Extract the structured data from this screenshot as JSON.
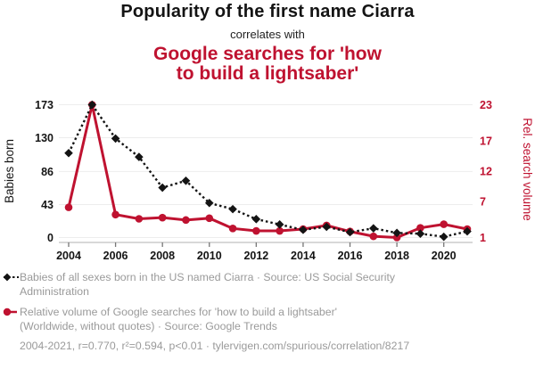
{
  "header": {
    "title1": "Popularity of the first name Ciarra",
    "connector": "correlates with",
    "title2": "Google searches for 'how to build a lightsaber'",
    "title2_lines": [
      "Google searches for 'how",
      "to build a lightsaber'"
    ]
  },
  "colors": {
    "accent_red": "#bf1230",
    "series_black": "#141414",
    "legend_gray": "#9a9a9a",
    "gridline": "#ededed",
    "axis_line": "#b0b0b0",
    "background": "#ffffff"
  },
  "chart_data": {
    "type": "line",
    "x": [
      2004,
      2005,
      2006,
      2007,
      2008,
      2009,
      2010,
      2011,
      2012,
      2013,
      2014,
      2015,
      2016,
      2017,
      2018,
      2019,
      2020,
      2021
    ],
    "series": [
      {
        "key": "babies-born",
        "name": "Babies born",
        "axis": "left",
        "color": "#141414",
        "line": "dashed",
        "marker": "diamond",
        "values": [
          110,
          173,
          129,
          105,
          65,
          74,
          45,
          37,
          24,
          17,
          10,
          14,
          7,
          12,
          6,
          5,
          1,
          8
        ]
      },
      {
        "key": "search-volume",
        "name": "Rel. search volume",
        "axis": "right",
        "color": "#bf1230",
        "line": "solid",
        "marker": "circle",
        "values": [
          6,
          23,
          4.8,
          4.1,
          4.3,
          3.9,
          4.2,
          2.5,
          2.1,
          2.1,
          2.4,
          3,
          2,
          1.2,
          1,
          2.6,
          3.2,
          2.4
        ]
      }
    ],
    "left_axis": {
      "label": "Babies born",
      "ticks": [
        0,
        43,
        86,
        130,
        173
      ],
      "range": [
        0,
        173
      ]
    },
    "right_axis": {
      "label": "Rel. search volume",
      "ticks": [
        1,
        7,
        12,
        17,
        23
      ],
      "range": [
        1,
        23
      ]
    },
    "x_axis": {
      "ticks": [
        2004,
        2006,
        2008,
        2010,
        2012,
        2014,
        2016,
        2018,
        2020
      ],
      "range": [
        2004,
        2021
      ]
    },
    "grid": "horizontal-only",
    "legend_position": "below"
  },
  "legend": {
    "entries": [
      {
        "marker": "black-diamond-dashed",
        "text": "Babies of all sexes born in the US named Ciarra · Source: US Social Security Administration",
        "lines": [
          "Babies of all sexes born in the US named Ciarra · Source: US Social Security",
          "Administration"
        ]
      },
      {
        "marker": "red-circle-solid",
        "text": "Relative volume of Google searches for 'how to build a lightsaber' (Worldwide, without quotes) · Source: Google Trends",
        "lines": [
          "Relative volume of Google searches for 'how to build a lightsaber'",
          "(Worldwide, without quotes) · Source: Google Trends"
        ]
      }
    ],
    "stats": "2004-2021, r=0.770, r²=0.594, p<0.01 · tylervigen.com/spurious/correlation/8217"
  }
}
